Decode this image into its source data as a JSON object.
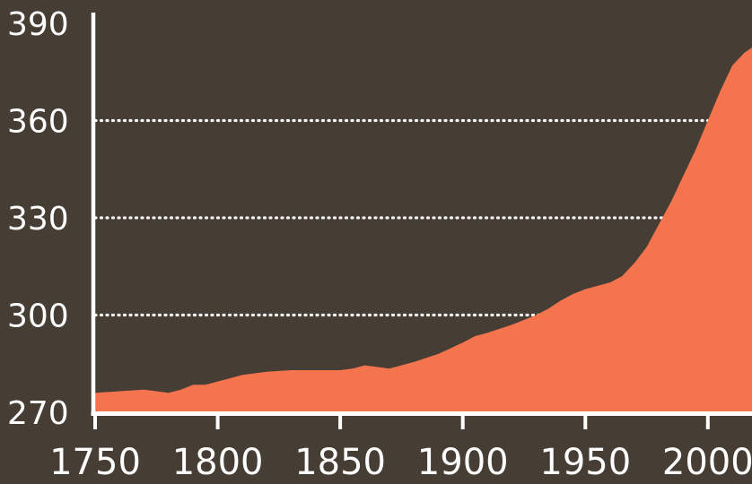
{
  "chart_data": {
    "type": "area",
    "title": "",
    "xlabel": "",
    "ylabel": "",
    "x": [
      1750,
      1760,
      1770,
      1775,
      1780,
      1785,
      1790,
      1795,
      1800,
      1810,
      1820,
      1830,
      1840,
      1850,
      1855,
      1860,
      1865,
      1870,
      1880,
      1890,
      1900,
      1905,
      1910,
      1920,
      1930,
      1935,
      1940,
      1945,
      1950,
      1955,
      1960,
      1965,
      1970,
      1975,
      1980,
      1985,
      1990,
      1995,
      2000,
      2005,
      2010,
      2015,
      2018
    ],
    "values": [
      276,
      276.5,
      277,
      276.5,
      276,
      277,
      278.5,
      278.5,
      279.5,
      281.5,
      282.5,
      283,
      283,
      283,
      283.5,
      284.5,
      284,
      283.5,
      285.5,
      288,
      291.5,
      293.5,
      294.5,
      297,
      300,
      302,
      304.5,
      306.5,
      308,
      309,
      310,
      312,
      316,
      321,
      328,
      335,
      343,
      351,
      360,
      369,
      377,
      381,
      382.5
    ],
    "xlim": [
      1750,
      2018
    ],
    "ylim": [
      270,
      390
    ],
    "x_ticks": [
      1750,
      1800,
      1850,
      1900,
      1950,
      2000
    ],
    "x_tick_labels": [
      "1750",
      "1800",
      "1850",
      "1900",
      "1950",
      "2000"
    ],
    "y_ticks": [
      270,
      300,
      330,
      360,
      390
    ],
    "y_tick_labels": [
      "270",
      "300",
      "330",
      "360",
      "390"
    ],
    "gridlines_y": [
      300,
      330,
      360
    ],
    "grid_style": "dotted",
    "legend": "none",
    "colors": {
      "background": "#463E35",
      "area": "#F4744E",
      "axis": "#FFFFFF",
      "gridline": "#FFFFFF",
      "tick_labels": "#FFFFFF"
    }
  }
}
